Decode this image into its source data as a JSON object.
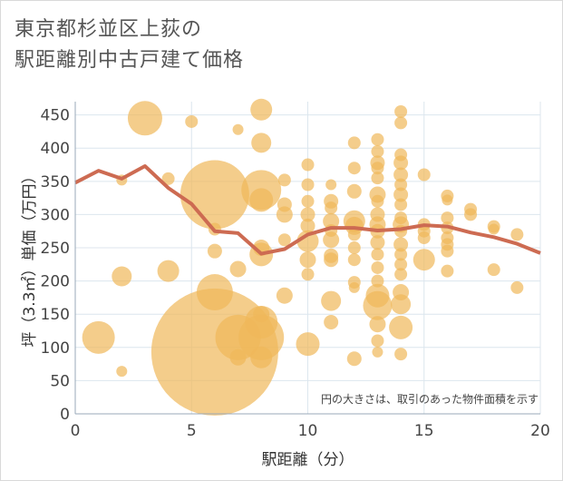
{
  "title_lines": [
    "東京都杉並区上荻の",
    "駅距離別中古戸建て価格"
  ],
  "chart_data": {
    "type": "scatter",
    "title": "東京都杉並区上荻の駅距離別中古戸建て価格",
    "xlabel": "駅距離（分）",
    "ylabel": "坪（3.3㎡）単価（万円）",
    "xlim": [
      0,
      20
    ],
    "ylim": [
      0,
      470
    ],
    "xticks": [
      0,
      5,
      10,
      15,
      20
    ],
    "yticks": [
      0,
      50,
      100,
      150,
      200,
      250,
      300,
      350,
      400,
      450
    ],
    "grid": true,
    "annotation": "円の大きさは、取引のあった物件面積を示す",
    "colors": {
      "bubble": "#f0b85a",
      "line": "#cd6b52"
    },
    "bubbles": [
      {
        "x": 1,
        "y": 115,
        "s": 18
      },
      {
        "x": 2,
        "y": 64,
        "s": 6
      },
      {
        "x": 2,
        "y": 207,
        "s": 11
      },
      {
        "x": 2,
        "y": 352,
        "s": 6
      },
      {
        "x": 3,
        "y": 445,
        "s": 19
      },
      {
        "x": 4,
        "y": 215,
        "s": 12
      },
      {
        "x": 4,
        "y": 354,
        "s": 7
      },
      {
        "x": 5,
        "y": 440,
        "s": 7
      },
      {
        "x": 6,
        "y": 93,
        "s": 70
      },
      {
        "x": 6,
        "y": 183,
        "s": 20
      },
      {
        "x": 6,
        "y": 245,
        "s": 8
      },
      {
        "x": 6,
        "y": 330,
        "s": 38
      },
      {
        "x": 6,
        "y": 278,
        "s": 7
      },
      {
        "x": 7,
        "y": 428,
        "s": 6
      },
      {
        "x": 7,
        "y": 218,
        "s": 9
      },
      {
        "x": 7,
        "y": 85,
        "s": 9
      },
      {
        "x": 7,
        "y": 115,
        "s": 25
      },
      {
        "x": 8,
        "y": 458,
        "s": 12
      },
      {
        "x": 8,
        "y": 408,
        "s": 11
      },
      {
        "x": 8,
        "y": 337,
        "s": 22
      },
      {
        "x": 8,
        "y": 322,
        "s": 13
      },
      {
        "x": 8,
        "y": 240,
        "s": 13
      },
      {
        "x": 8,
        "y": 250,
        "s": 9
      },
      {
        "x": 8,
        "y": 150,
        "s": 9
      },
      {
        "x": 8,
        "y": 138,
        "s": 18
      },
      {
        "x": 8,
        "y": 115,
        "s": 25
      },
      {
        "x": 8,
        "y": 85,
        "s": 12
      },
      {
        "x": 9,
        "y": 352,
        "s": 7
      },
      {
        "x": 9,
        "y": 315,
        "s": 8
      },
      {
        "x": 9,
        "y": 300,
        "s": 9
      },
      {
        "x": 9,
        "y": 262,
        "s": 7
      },
      {
        "x": 9,
        "y": 178,
        "s": 9
      },
      {
        "x": 10,
        "y": 375,
        "s": 7
      },
      {
        "x": 10,
        "y": 345,
        "s": 7
      },
      {
        "x": 10,
        "y": 320,
        "s": 7
      },
      {
        "x": 10,
        "y": 300,
        "s": 8
      },
      {
        "x": 10,
        "y": 283,
        "s": 8
      },
      {
        "x": 10,
        "y": 260,
        "s": 12
      },
      {
        "x": 10,
        "y": 232,
        "s": 9
      },
      {
        "x": 10,
        "y": 210,
        "s": 7
      },
      {
        "x": 10,
        "y": 105,
        "s": 13
      },
      {
        "x": 11,
        "y": 345,
        "s": 6
      },
      {
        "x": 11,
        "y": 320,
        "s": 8
      },
      {
        "x": 11,
        "y": 310,
        "s": 7
      },
      {
        "x": 11,
        "y": 290,
        "s": 9
      },
      {
        "x": 11,
        "y": 276,
        "s": 7
      },
      {
        "x": 11,
        "y": 262,
        "s": 9
      },
      {
        "x": 11,
        "y": 238,
        "s": 8
      },
      {
        "x": 11,
        "y": 232,
        "s": 8
      },
      {
        "x": 11,
        "y": 170,
        "s": 11
      },
      {
        "x": 11,
        "y": 138,
        "s": 8
      },
      {
        "x": 12,
        "y": 408,
        "s": 7
      },
      {
        "x": 12,
        "y": 370,
        "s": 7
      },
      {
        "x": 12,
        "y": 335,
        "s": 8
      },
      {
        "x": 12,
        "y": 290,
        "s": 12
      },
      {
        "x": 12,
        "y": 283,
        "s": 10
      },
      {
        "x": 12,
        "y": 270,
        "s": 7
      },
      {
        "x": 12,
        "y": 250,
        "s": 7
      },
      {
        "x": 12,
        "y": 232,
        "s": 7
      },
      {
        "x": 12,
        "y": 198,
        "s": 7
      },
      {
        "x": 12,
        "y": 190,
        "s": 6
      },
      {
        "x": 12,
        "y": 83,
        "s": 8
      },
      {
        "x": 13,
        "y": 413,
        "s": 7
      },
      {
        "x": 13,
        "y": 395,
        "s": 7
      },
      {
        "x": 13,
        "y": 378,
        "s": 8
      },
      {
        "x": 13,
        "y": 370,
        "s": 7
      },
      {
        "x": 13,
        "y": 355,
        "s": 7
      },
      {
        "x": 13,
        "y": 330,
        "s": 9
      },
      {
        "x": 13,
        "y": 320,
        "s": 7
      },
      {
        "x": 13,
        "y": 300,
        "s": 8
      },
      {
        "x": 13,
        "y": 285,
        "s": 9
      },
      {
        "x": 13,
        "y": 275,
        "s": 8
      },
      {
        "x": 13,
        "y": 258,
        "s": 8
      },
      {
        "x": 13,
        "y": 240,
        "s": 7
      },
      {
        "x": 13,
        "y": 220,
        "s": 7
      },
      {
        "x": 13,
        "y": 200,
        "s": 7
      },
      {
        "x": 13,
        "y": 178,
        "s": 13
      },
      {
        "x": 13,
        "y": 163,
        "s": 16
      },
      {
        "x": 13,
        "y": 135,
        "s": 9
      },
      {
        "x": 13,
        "y": 110,
        "s": 7
      },
      {
        "x": 13,
        "y": 93,
        "s": 6
      },
      {
        "x": 14,
        "y": 455,
        "s": 7
      },
      {
        "x": 14,
        "y": 438,
        "s": 7
      },
      {
        "x": 14,
        "y": 390,
        "s": 7
      },
      {
        "x": 14,
        "y": 378,
        "s": 8
      },
      {
        "x": 14,
        "y": 360,
        "s": 8
      },
      {
        "x": 14,
        "y": 345,
        "s": 7
      },
      {
        "x": 14,
        "y": 330,
        "s": 8
      },
      {
        "x": 14,
        "y": 315,
        "s": 7
      },
      {
        "x": 14,
        "y": 295,
        "s": 7
      },
      {
        "x": 14,
        "y": 285,
        "s": 9
      },
      {
        "x": 14,
        "y": 275,
        "s": 7
      },
      {
        "x": 14,
        "y": 255,
        "s": 8
      },
      {
        "x": 14,
        "y": 240,
        "s": 7
      },
      {
        "x": 14,
        "y": 225,
        "s": 7
      },
      {
        "x": 14,
        "y": 210,
        "s": 7
      },
      {
        "x": 14,
        "y": 183,
        "s": 9
      },
      {
        "x": 14,
        "y": 165,
        "s": 11
      },
      {
        "x": 14,
        "y": 130,
        "s": 13
      },
      {
        "x": 14,
        "y": 90,
        "s": 7
      },
      {
        "x": 15,
        "y": 360,
        "s": 7
      },
      {
        "x": 15,
        "y": 285,
        "s": 7
      },
      {
        "x": 15,
        "y": 275,
        "s": 7
      },
      {
        "x": 15,
        "y": 265,
        "s": 7
      },
      {
        "x": 15,
        "y": 232,
        "s": 12
      },
      {
        "x": 16,
        "y": 328,
        "s": 7
      },
      {
        "x": 16,
        "y": 322,
        "s": 6
      },
      {
        "x": 16,
        "y": 295,
        "s": 7
      },
      {
        "x": 16,
        "y": 280,
        "s": 7
      },
      {
        "x": 16,
        "y": 265,
        "s": 7
      },
      {
        "x": 16,
        "y": 255,
        "s": 7
      },
      {
        "x": 16,
        "y": 245,
        "s": 7
      },
      {
        "x": 16,
        "y": 215,
        "s": 7
      },
      {
        "x": 17,
        "y": 308,
        "s": 7
      },
      {
        "x": 17,
        "y": 300,
        "s": 7
      },
      {
        "x": 18,
        "y": 282,
        "s": 7
      },
      {
        "x": 18,
        "y": 278,
        "s": 6
      },
      {
        "x": 18,
        "y": 217,
        "s": 7
      },
      {
        "x": 19,
        "y": 270,
        "s": 7
      },
      {
        "x": 19,
        "y": 190,
        "s": 7
      }
    ],
    "series": [
      {
        "x": [
          0,
          1,
          2,
          3,
          4,
          5,
          6,
          7,
          8,
          9,
          10,
          11,
          12,
          13,
          14,
          15,
          16,
          17,
          18,
          19,
          20
        ],
        "values": [
          348,
          366,
          354,
          373,
          340,
          316,
          275,
          272,
          241,
          248,
          270,
          280,
          280,
          276,
          278,
          284,
          282,
          273,
          266,
          256,
          242
        ]
      }
    ]
  }
}
